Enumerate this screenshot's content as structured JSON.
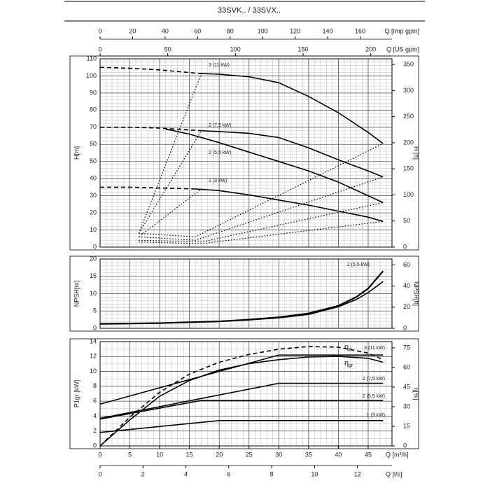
{
  "title": "33SVK.. / 33SVX..",
  "chart_data": [
    {
      "type": "line",
      "ylabel": "H[m]",
      "y2label": "H [ft]",
      "xlim": [
        0,
        49
      ],
      "xticks": [
        0,
        5,
        10,
        15,
        20,
        25,
        30,
        35,
        40,
        45
      ],
      "ylim": [
        0,
        110
      ],
      "yticks": [
        0,
        10,
        20,
        30,
        40,
        50,
        60,
        70,
        80,
        90,
        100,
        110
      ],
      "y2lim": [
        0,
        360.9
      ],
      "y2ticks": [
        0,
        50,
        100,
        150,
        200,
        250,
        300,
        350
      ],
      "grid": true,
      "minor_grid": {
        "x": 1,
        "y": 2
      },
      "top_axes": [
        {
          "label": "Q [Imp gpm]",
          "xlim": [
            0,
            179.6
          ],
          "xticks": [
            0,
            20,
            40,
            60,
            80,
            100,
            120,
            140,
            160
          ]
        },
        {
          "label": "Q [US gpm]",
          "xlim": [
            0,
            215.7
          ],
          "xticks": [
            0,
            50,
            100,
            150,
            200
          ]
        }
      ],
      "series": [
        {
          "color": "#000",
          "style": "dashed",
          "x": [
            0,
            5,
            10,
            16.5
          ],
          "values": [
            105,
            104.5,
            103.5,
            101.5
          ]
        },
        {
          "name": "3 (11 kW)",
          "color": "#000",
          "style": "solid",
          "x": [
            16.5,
            20,
            25,
            30,
            35,
            40,
            45,
            47.5
          ],
          "values": [
            101.5,
            101,
            99.5,
            96,
            88,
            78.5,
            67,
            60.5
          ]
        },
        {
          "color": "#000",
          "style": "dashed",
          "x": [
            0,
            5,
            10,
            17
          ],
          "values": [
            70,
            70,
            69.5,
            68
          ]
        },
        {
          "name": "2 (7,5 kW)",
          "color": "#000",
          "style": "solid",
          "x": [
            17,
            20,
            25,
            30,
            35,
            40,
            45,
            47.5
          ],
          "values": [
            68,
            67.5,
            66.5,
            64,
            58,
            51,
            44.5,
            41
          ]
        },
        {
          "name": "2 (5,5 kW)",
          "color": "#000",
          "style": "solid",
          "x": [
            11,
            15,
            20,
            25,
            30,
            35,
            40,
            45,
            47.5
          ],
          "values": [
            69,
            66,
            61,
            55.5,
            50,
            44.5,
            38,
            30,
            26
          ]
        },
        {
          "color": "#000",
          "style": "dashed",
          "x": [
            0,
            5,
            10,
            16
          ],
          "values": [
            35,
            35,
            34.5,
            34
          ]
        },
        {
          "name": "1 (3 kW)",
          "color": "#000",
          "style": "solid",
          "x": [
            16,
            20,
            25,
            30,
            35,
            40,
            45,
            47.5
          ],
          "values": [
            34,
            33,
            30.5,
            27.5,
            24.5,
            21,
            17.5,
            15
          ]
        },
        {
          "color": "#000",
          "style": "dotted",
          "x": [
            6.5,
            17
          ],
          "values": [
            8,
            101.5
          ]
        },
        {
          "color": "#000",
          "style": "dotted",
          "x": [
            6.5,
            17
          ],
          "values": [
            8,
            68
          ]
        },
        {
          "color": "#000",
          "style": "dotted",
          "x": [
            6.5,
            17
          ],
          "values": [
            6,
            34
          ]
        },
        {
          "color": "#000",
          "style": "dotted",
          "x": [
            6.5,
            16,
            47.5
          ],
          "values": [
            8,
            6,
            60.5
          ]
        },
        {
          "color": "#000",
          "style": "dotted",
          "x": [
            6.5,
            16,
            47.5
          ],
          "values": [
            6,
            4,
            41
          ]
        },
        {
          "color": "#000",
          "style": "dotted",
          "x": [
            6.5,
            17,
            47.5
          ],
          "values": [
            4,
            3,
            26
          ]
        },
        {
          "color": "#000",
          "style": "dotted",
          "x": [
            6.5,
            17,
            47.5
          ],
          "values": [
            3,
            2,
            15
          ]
        }
      ]
    },
    {
      "type": "line",
      "ylabel": "NPSH[m]",
      "y2label": "NPSH[ft]",
      "xlim": [
        0,
        49
      ],
      "xticks": [
        0,
        5,
        10,
        15,
        20,
        25,
        30,
        35,
        40,
        45
      ],
      "ylim": [
        0,
        20
      ],
      "yticks": [
        0,
        5,
        10,
        15,
        20
      ],
      "y2lim": [
        0,
        65.6
      ],
      "y2ticks": [
        0,
        20,
        40,
        60
      ],
      "grid": true,
      "minor_grid": {
        "x": 1,
        "y": 1
      },
      "series": [
        {
          "name": "2 (5,5 kW)",
          "color": "#000",
          "style": "solid",
          "x": [
            0,
            10,
            20,
            25,
            30,
            35,
            40,
            43,
            45,
            47.5
          ],
          "values": [
            1.3,
            1.5,
            2,
            2.5,
            3.2,
            4.3,
            6.5,
            9,
            11.5,
            16.5
          ]
        },
        {
          "color": "#000",
          "style": "solid",
          "x": [
            0,
            10,
            20,
            25,
            30,
            35,
            40,
            43,
            45,
            47.5
          ],
          "values": [
            1.3,
            1.5,
            2,
            2.4,
            3,
            4,
            6.2,
            8.3,
            10.3,
            13.5
          ]
        }
      ]
    },
    {
      "type": "line",
      "ylabel": "P1gr [kW]",
      "y2label": "η[%]",
      "xlabel": "Q [m³/h]",
      "xlim": [
        0,
        49
      ],
      "xticks": [
        0,
        5,
        10,
        15,
        20,
        25,
        30,
        35,
        40,
        45
      ],
      "ylim": [
        0,
        14
      ],
      "yticks": [
        0,
        2,
        4,
        6,
        8,
        10,
        12,
        14
      ],
      "y2lim": [
        0,
        79.8
      ],
      "y2ticks": [
        0,
        15,
        30,
        45,
        60,
        75
      ],
      "grid": true,
      "minor_grid": {
        "x": 1,
        "y": 1
      },
      "bottom_axes": [
        {
          "label": "Q [l/s]",
          "xlim": [
            0,
            13.61
          ],
          "xticks": [
            0,
            2,
            4,
            6,
            8,
            10,
            12
          ]
        }
      ],
      "series": [
        {
          "name": "3 (11 kW)",
          "color": "#000",
          "style": "solid",
          "x": [
            0,
            30,
            47.5
          ],
          "values": [
            5.6,
            12.2,
            12.2
          ]
        },
        {
          "name": "2 (7,5 kW)",
          "color": "#000",
          "style": "solid",
          "x": [
            0,
            30,
            47.5
          ],
          "values": [
            3.7,
            8.4,
            8.4
          ]
        },
        {
          "name": "2 (5,5 kW)",
          "color": "#000",
          "style": "solid",
          "x": [
            0,
            17,
            47.5
          ],
          "values": [
            3.6,
            6.1,
            6.1
          ]
        },
        {
          "name": "1 (3 kW)",
          "color": "#000",
          "style": "solid",
          "x": [
            0,
            20,
            47.5
          ],
          "values": [
            1.8,
            3.4,
            3.4
          ]
        },
        {
          "name": "η",
          "name_sub": "p",
          "axis": "y2",
          "color": "#000",
          "style": "dashed",
          "x": [
            0,
            5,
            10,
            15,
            20,
            25,
            30,
            35,
            40,
            45,
            47.5
          ],
          "values": [
            0,
            22,
            41,
            55,
            64,
            70,
            74,
            76,
            75.5,
            71,
            66
          ]
        },
        {
          "name": "η",
          "name_sub": "gr",
          "axis": "y2",
          "color": "#000",
          "style": "solid",
          "x": [
            0,
            5,
            10,
            15,
            20,
            25,
            30,
            35,
            40,
            45,
            47.5
          ],
          "values": [
            0,
            20,
            38,
            50,
            58,
            63,
            66,
            68,
            68.5,
            67,
            64
          ]
        }
      ]
    }
  ]
}
